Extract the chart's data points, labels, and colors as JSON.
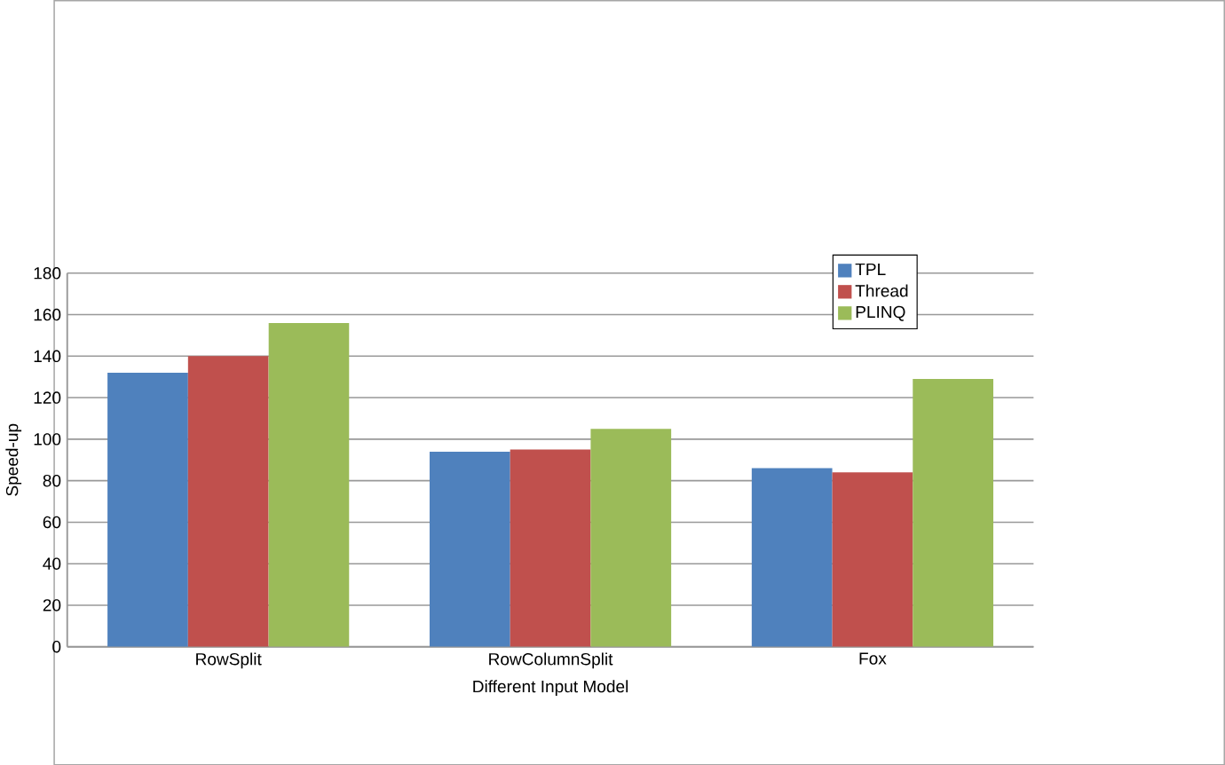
{
  "chart_data": {
    "type": "bar",
    "xlabel": "Different Input Model",
    "ylabel": "Speed-up",
    "categories": [
      "RowSplit",
      "RowColumnSplit",
      "Fox"
    ],
    "series": [
      {
        "name": "TPL",
        "color": "#4f81bd",
        "values": [
          132,
          94,
          86
        ]
      },
      {
        "name": "Thread",
        "color": "#c0504d",
        "values": [
          140,
          95,
          84
        ]
      },
      {
        "name": "PLINQ",
        "color": "#9bbb59",
        "values": [
          156,
          105,
          129
        ]
      }
    ],
    "ylim": [
      0,
      180
    ],
    "yticks": [
      0,
      20,
      40,
      60,
      80,
      100,
      120,
      140,
      160,
      180
    ],
    "grid": "y",
    "legend": "top right"
  }
}
